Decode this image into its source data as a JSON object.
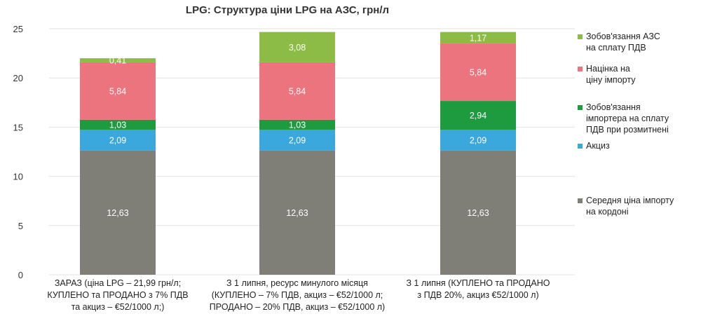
{
  "chart_data": {
    "type": "bar",
    "stacked": true,
    "title": "LPG: Структура ціни LPG на АЗС, грн/л",
    "xlabel": "",
    "ylabel": "",
    "ylim": [
      0,
      25
    ],
    "yticks": [
      "0",
      "5",
      "10",
      "15",
      "20",
      "25"
    ],
    "grid": true,
    "legend_position": "right",
    "categories": [
      [
        "ЗАРАЗ (ціна LPG – 21,99 грн/л;",
        "КУПЛЕНО та ПРОДАНО з 7% ПДВ",
        "та акциз – €52/1000 л;)"
      ],
      [
        "З 1 липня, ресурс минулого місяця",
        "(КУПЛЕНО – 7% ПДВ, акциз – €52/1000 л;",
        "ПРОДАНО – 20% ПДВ, акциз – €52/1000 л)"
      ],
      [
        "З 1 липня (КУПЛЕНО та ПРОДАНО",
        "з ПДВ 20%, акциз €52/1000 л)"
      ]
    ],
    "series": [
      {
        "name": "Середня ціна імпорту на кордоні",
        "legend": [
          "Середня ціна імпорту",
          "на кордоні"
        ],
        "color": "#7f7f78",
        "values": [
          12.63,
          12.63,
          12.63
        ],
        "labels": [
          "12,63",
          "12,63",
          "12,63"
        ]
      },
      {
        "name": "Акциз",
        "legend": [
          "Акциз"
        ],
        "color": "#3aa8dc",
        "values": [
          2.09,
          2.09,
          2.09
        ],
        "labels": [
          "2,09",
          "2,09",
          "2,09"
        ]
      },
      {
        "name": "Зобов'язання імпортера на сплату ПДВ при розмитнені",
        "legend": [
          "Зобов'язання",
          "імпортера на сплату",
          "ПДВ при розмитнені"
        ],
        "color": "#1f9b3f",
        "values": [
          1.03,
          1.03,
          2.94
        ],
        "labels": [
          "1,03",
          "1,03",
          "2,94"
        ]
      },
      {
        "name": "Націнка на ціну імпорту",
        "legend": [
          "Націнка на",
          "ціну імпорту"
        ],
        "color": "#ec747e",
        "values": [
          5.84,
          5.84,
          5.84
        ],
        "labels": [
          "5,84",
          "5,84",
          "5,84"
        ]
      },
      {
        "name": "Зобов'язання АЗС на сплату ПДВ",
        "legend": [
          "Зобов'язання АЗС",
          "на сплату ПДВ"
        ],
        "color": "#8cbc45",
        "values": [
          0.41,
          3.08,
          1.17
        ],
        "labels": [
          "0,41",
          "3,08",
          "1,17"
        ]
      }
    ]
  }
}
